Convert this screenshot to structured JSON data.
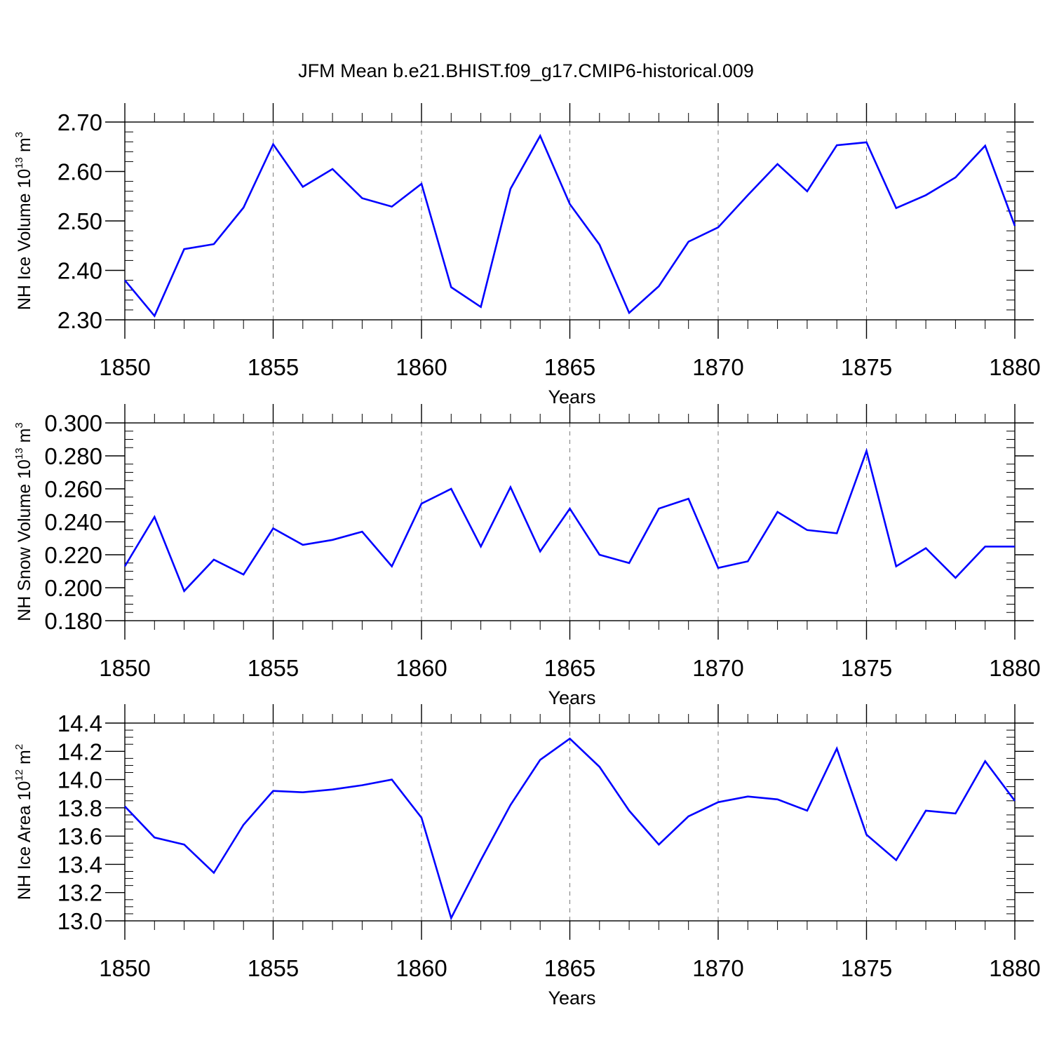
{
  "title": "JFM Mean b.e21.BHIST.f09_g17.CMIP6-historical.009",
  "chart_data": [
    {
      "type": "line",
      "ylabel": {
        "main": "NH Ice Volume 10",
        "exp": "13",
        "unit": " m",
        "unit_exp": "3"
      },
      "xlabel": "Years",
      "xlim": [
        1850,
        1880
      ],
      "ylim": [
        2.3,
        2.7
      ],
      "ytick_values": [
        2.3,
        2.4,
        2.5,
        2.6,
        2.7
      ],
      "ytick_labels": [
        "2.30",
        "2.40",
        "2.50",
        "2.60",
        "2.70"
      ],
      "yminor_step": 0.02,
      "xtick_values": [
        1850,
        1855,
        1860,
        1865,
        1870,
        1875,
        1880
      ],
      "xtick_labels": [
        "1850",
        "1855",
        "1860",
        "1865",
        "1870",
        "1875",
        "1880"
      ],
      "grid": "vertical dashed at major x ticks",
      "series": [
        {
          "name": "NH Ice Volume",
          "color": "#0000ff",
          "x": [
            1850,
            1851,
            1852,
            1853,
            1854,
            1855,
            1856,
            1857,
            1858,
            1859,
            1860,
            1861,
            1862,
            1863,
            1864,
            1865,
            1866,
            1867,
            1868,
            1869,
            1870,
            1871,
            1872,
            1873,
            1874,
            1875,
            1876,
            1877,
            1878,
            1879,
            1880
          ],
          "values": [
            2.38,
            2.308,
            2.443,
            2.453,
            2.527,
            2.655,
            2.569,
            2.605,
            2.546,
            2.529,
            2.575,
            2.366,
            2.326,
            2.565,
            2.672,
            2.534,
            2.452,
            2.314,
            2.368,
            2.458,
            2.487,
            2.552,
            2.615,
            2.56,
            2.653,
            2.659,
            2.526,
            2.552,
            2.588,
            2.652,
            2.49
          ]
        }
      ]
    },
    {
      "type": "line",
      "ylabel": {
        "main": "NH Snow Volume 10",
        "exp": "13",
        "unit": " m",
        "unit_exp": "3"
      },
      "xlabel": "Years",
      "xlim": [
        1850,
        1880
      ],
      "ylim": [
        0.18,
        0.3
      ],
      "ytick_values": [
        0.18,
        0.2,
        0.22,
        0.24,
        0.26,
        0.28,
        0.3
      ],
      "ytick_labels": [
        "0.180",
        "0.200",
        "0.220",
        "0.240",
        "0.260",
        "0.280",
        "0.300"
      ],
      "yminor_step": 0.005,
      "xtick_values": [
        1850,
        1855,
        1860,
        1865,
        1870,
        1875,
        1880
      ],
      "xtick_labels": [
        "1850",
        "1855",
        "1860",
        "1865",
        "1870",
        "1875",
        "1880"
      ],
      "grid": "vertical dashed at major x ticks",
      "series": [
        {
          "name": "NH Snow Volume",
          "color": "#0000ff",
          "x": [
            1850,
            1851,
            1852,
            1853,
            1854,
            1855,
            1856,
            1857,
            1858,
            1859,
            1860,
            1861,
            1862,
            1863,
            1864,
            1865,
            1866,
            1867,
            1868,
            1869,
            1870,
            1871,
            1872,
            1873,
            1874,
            1875,
            1876,
            1877,
            1878,
            1879,
            1880
          ],
          "values": [
            0.213,
            0.243,
            0.198,
            0.217,
            0.208,
            0.236,
            0.226,
            0.229,
            0.234,
            0.213,
            0.251,
            0.26,
            0.225,
            0.261,
            0.222,
            0.248,
            0.22,
            0.215,
            0.248,
            0.254,
            0.212,
            0.216,
            0.246,
            0.235,
            0.233,
            0.283,
            0.213,
            0.224,
            0.206,
            0.225,
            0.225
          ]
        }
      ]
    },
    {
      "type": "line",
      "ylabel": {
        "main": "NH Ice Area 10",
        "exp": "12",
        "unit": " m",
        "unit_exp": "2"
      },
      "xlabel": "Years",
      "xlim": [
        1850,
        1880
      ],
      "ylim": [
        13.0,
        14.4
      ],
      "ytick_values": [
        13.0,
        13.2,
        13.4,
        13.6,
        13.8,
        14.0,
        14.2,
        14.4
      ],
      "ytick_labels": [
        "13.0",
        "13.2",
        "13.4",
        "13.6",
        "13.8",
        "14.0",
        "14.2",
        "14.4"
      ],
      "yminor_step": 0.05,
      "xtick_values": [
        1850,
        1855,
        1860,
        1865,
        1870,
        1875,
        1880
      ],
      "xtick_labels": [
        "1850",
        "1855",
        "1860",
        "1865",
        "1870",
        "1875",
        "1880"
      ],
      "grid": "vertical dashed at major x ticks",
      "series": [
        {
          "name": "NH Ice Area",
          "color": "#0000ff",
          "x": [
            1850,
            1851,
            1852,
            1853,
            1854,
            1855,
            1856,
            1857,
            1858,
            1859,
            1860,
            1861,
            1862,
            1863,
            1864,
            1865,
            1866,
            1867,
            1868,
            1869,
            1870,
            1871,
            1872,
            1873,
            1874,
            1875,
            1876,
            1877,
            1878,
            1879,
            1880
          ],
          "values": [
            13.81,
            13.59,
            13.54,
            13.34,
            13.68,
            13.92,
            13.91,
            13.93,
            13.96,
            14.0,
            13.73,
            13.02,
            13.43,
            13.82,
            14.14,
            14.29,
            14.09,
            13.78,
            13.54,
            13.74,
            13.84,
            13.88,
            13.86,
            13.78,
            14.22,
            13.61,
            13.43,
            13.78,
            13.76,
            14.13,
            13.85
          ]
        }
      ]
    }
  ]
}
